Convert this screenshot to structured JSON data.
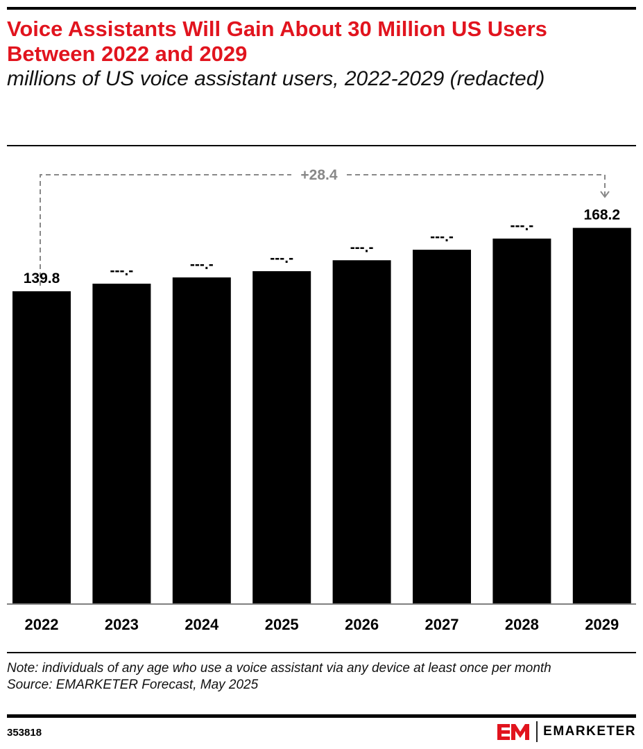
{
  "title": "Voice Assistants Will Gain About 30 Million US Users Between 2022 and 2029",
  "subtitle": "millions of US voice assistant users, 2022-2029 (redacted)",
  "chart_data": {
    "type": "bar",
    "categories": [
      "2022",
      "2023",
      "2024",
      "2025",
      "2026",
      "2027",
      "2028",
      "2029"
    ],
    "values": [
      139.8,
      143.2,
      146.0,
      148.8,
      153.7,
      158.4,
      163.4,
      168.2
    ],
    "data_labels": [
      "139.8",
      "---.-",
      "---.-",
      "---.-",
      "---.-",
      "---.-",
      "---.-",
      "168.2"
    ],
    "annotation": "+28.4",
    "ylim": [
      0,
      170
    ],
    "grid": false,
    "bar_color": "#000000"
  },
  "note": "Note: individuals of any age who use a voice assistant via any device at least once per month",
  "source": "Source: EMARKETER Forecast, May 2025",
  "chart_id": "353818",
  "brand": {
    "name": "EMARKETER",
    "color": "#e1141e"
  }
}
